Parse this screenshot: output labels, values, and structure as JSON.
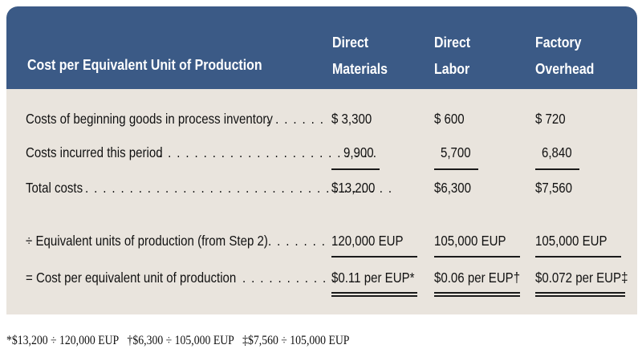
{
  "header": {
    "title": "Cost per Equivalent Unit of Production",
    "col1": [
      "Direct",
      "Materials"
    ],
    "col2": [
      "Direct",
      "Labor"
    ],
    "col3": [
      "Factory",
      "Overhead"
    ]
  },
  "rows": [
    {
      "label": "Costs of beginning goods in process inventory",
      "leader": ". . . . . . .",
      "v1": "$ 3,300",
      "v2": "$ 600",
      "v3": "$ 720"
    },
    {
      "label": "Costs incurred this period",
      "leader": ". . . . . . . . . . . . . . . . . . . . . . . . .",
      "v1": "9,900",
      "v2": "5,700",
      "v3": "6,840"
    },
    {
      "label": "Total costs",
      "leader": ". . . . . . . . . . . . . . . . . . . . . . . . . . . . . . . . . . .",
      "v1": "$13,200",
      "v2": "$6,300",
      "v3": "$7,560"
    },
    {
      "label": "÷ Equivalent units of production (from Step 2)",
      "leader": ". . . . . . .",
      "v1": "120,000 EUP",
      "v2": "105,000 EUP",
      "v3": "105,000 EUP"
    },
    {
      "label": "= Cost per equivalent unit of production",
      "leader": ". . . . . . . . . . .",
      "v1": "$0.11 per EUP*",
      "v2": "$0.06 per EUP†",
      "v3": "$0.072 per EUP‡"
    }
  ],
  "footnotes": {
    "f1": "*$13,200 ÷ 120,000 EUP",
    "f2": "†$6,300 ÷ 105,000 EUP",
    "f3": "‡$7,560 ÷ 105,000 EUP"
  },
  "colors": {
    "header_bg": "#3b5a86",
    "body_bg": "#e9e4dd",
    "header_text": "#ffffff"
  }
}
